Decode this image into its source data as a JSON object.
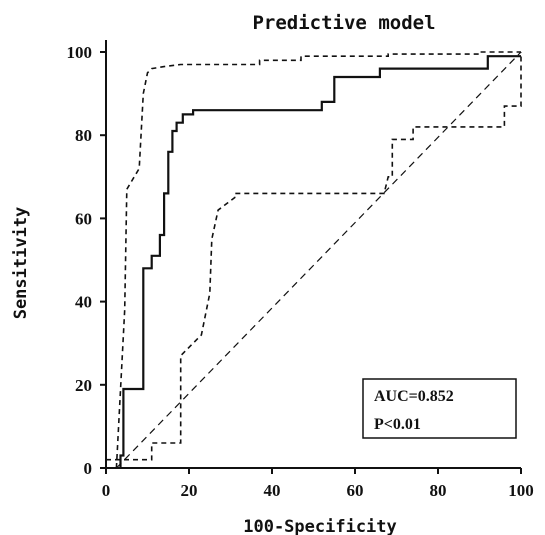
{
  "chart_data": {
    "type": "line",
    "title": "Predictive model",
    "xlabel": "100-Specificity",
    "ylabel": "Sensitivity",
    "xlim": [
      0,
      100
    ],
    "ylim": [
      0,
      100
    ],
    "xticks": [
      0,
      20,
      40,
      60,
      80,
      100
    ],
    "yticks": [
      0,
      20,
      40,
      60,
      80,
      100
    ],
    "grid": false,
    "series": [
      {
        "role": "roc",
        "style": "solid",
        "x": [
          3.5,
          3.5,
          4.2,
          4.2,
          9,
          9,
          11,
          11,
          13,
          13,
          14,
          14,
          15,
          15,
          16,
          16,
          17,
          17,
          18.5,
          18.5,
          21,
          21,
          52,
          52,
          55,
          55,
          66,
          66,
          92,
          92,
          100
        ],
        "y": [
          0,
          3,
          3,
          19,
          19,
          48,
          48,
          51,
          51,
          56,
          56,
          66,
          66,
          76,
          76,
          81,
          81,
          83,
          83,
          85,
          85,
          86,
          86,
          88,
          88,
          94,
          94,
          96,
          96,
          99,
          99
        ]
      },
      {
        "role": "upper-ci",
        "style": "dashed",
        "x": [
          2.5,
          4.5,
          5,
          8,
          9,
          10,
          11,
          14,
          18,
          22,
          27,
          37,
          37,
          47,
          47,
          68,
          68,
          90,
          90,
          100
        ],
        "y": [
          0,
          38,
          67,
          72,
          90,
          95,
          96,
          96.5,
          97,
          97,
          97,
          97,
          98,
          98,
          99,
          99,
          99.5,
          99.5,
          100,
          100
        ]
      },
      {
        "role": "lower-ci",
        "style": "dashed",
        "x": [
          0,
          11,
          11,
          18,
          18,
          23,
          25,
          25.5,
          27,
          31,
          31,
          36,
          67,
          68,
          69,
          69,
          74,
          74,
          80,
          80,
          96,
          96,
          100,
          100
        ],
        "y": [
          2,
          2,
          6,
          6,
          27,
          32,
          42,
          55,
          62,
          65,
          66,
          66,
          66,
          70,
          70,
          79,
          79,
          82,
          82,
          82,
          82,
          87,
          87,
          100
        ]
      },
      {
        "role": "reference",
        "style": "dashed",
        "x": [
          2.5,
          100
        ],
        "y": [
          0,
          100
        ]
      }
    ],
    "annotation": {
      "auc": "AUC=0.852",
      "p": "P<0.01"
    }
  }
}
